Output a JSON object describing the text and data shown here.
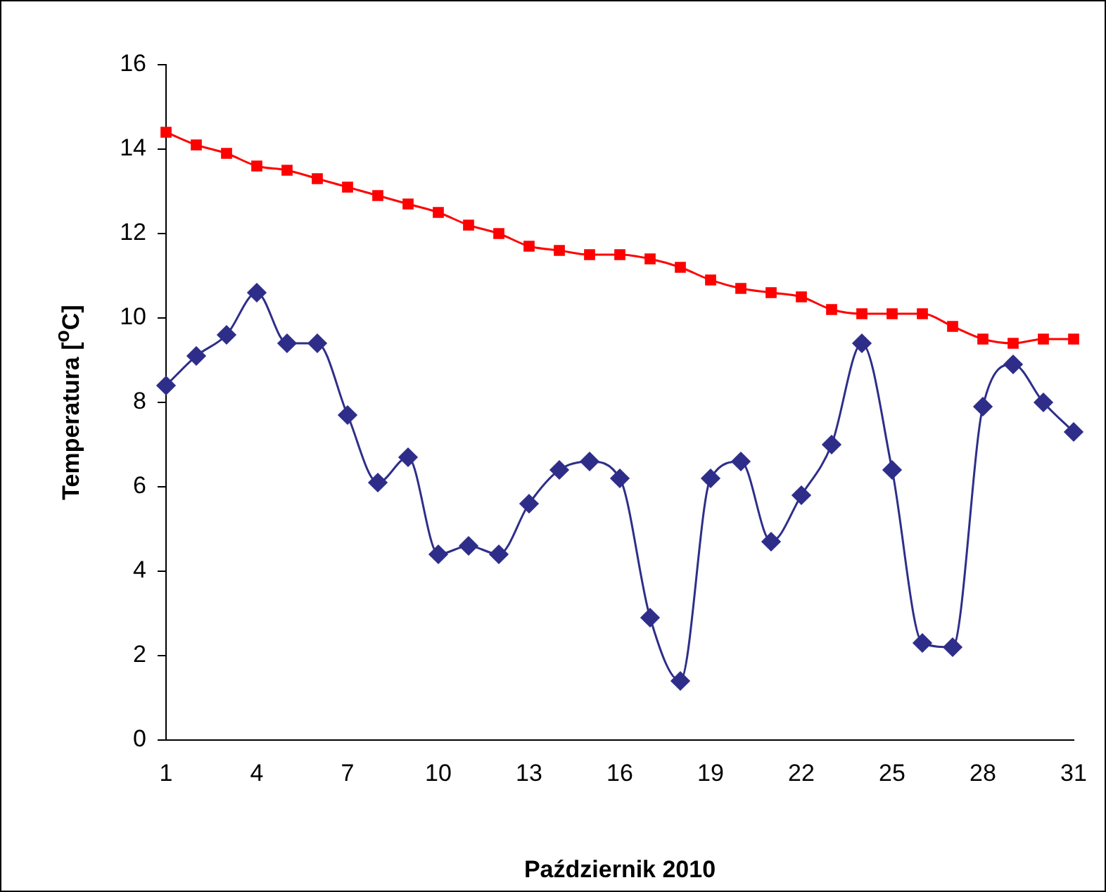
{
  "chart_data": {
    "type": "line",
    "xlabel": "Październik 2010",
    "ylabel": "Temperatura [$^{o}$C]",
    "categories": [
      "1",
      null,
      null,
      "4",
      null,
      null,
      "7",
      null,
      null,
      "10",
      null,
      null,
      "13",
      null,
      null,
      "16",
      null,
      null,
      "19",
      null,
      null,
      "22",
      null,
      null,
      "25",
      null,
      null,
      "28",
      null,
      null,
      "31"
    ],
    "ylim": [
      0,
      16
    ],
    "yticks": [
      0,
      2,
      4,
      6,
      8,
      10,
      12,
      14,
      16
    ],
    "grid": false,
    "legend": false,
    "series": [
      {
        "color": "#ff0000",
        "marker": "square",
        "values": [
          14.4,
          14.1,
          13.9,
          13.6,
          13.5,
          13.3,
          13.1,
          12.9,
          12.7,
          12.5,
          12.2,
          12.0,
          11.7,
          11.6,
          11.5,
          11.5,
          11.4,
          11.2,
          10.9,
          10.7,
          10.6,
          10.5,
          10.2,
          10.1,
          10.1,
          10.1,
          9.8,
          9.5,
          9.4,
          9.5,
          9.5
        ]
      },
      {
        "color": "#2e2e8a",
        "marker": "diamond",
        "values": [
          8.4,
          9.1,
          9.6,
          10.6,
          9.4,
          9.4,
          7.7,
          6.1,
          6.7,
          4.4,
          4.6,
          4.4,
          5.6,
          6.4,
          6.6,
          6.2,
          2.9,
          1.4,
          6.2,
          6.6,
          4.7,
          5.8,
          7.0,
          9.4,
          6.4,
          2.3,
          2.2,
          7.9,
          8.9,
          8.0,
          7.3
        ]
      }
    ]
  }
}
